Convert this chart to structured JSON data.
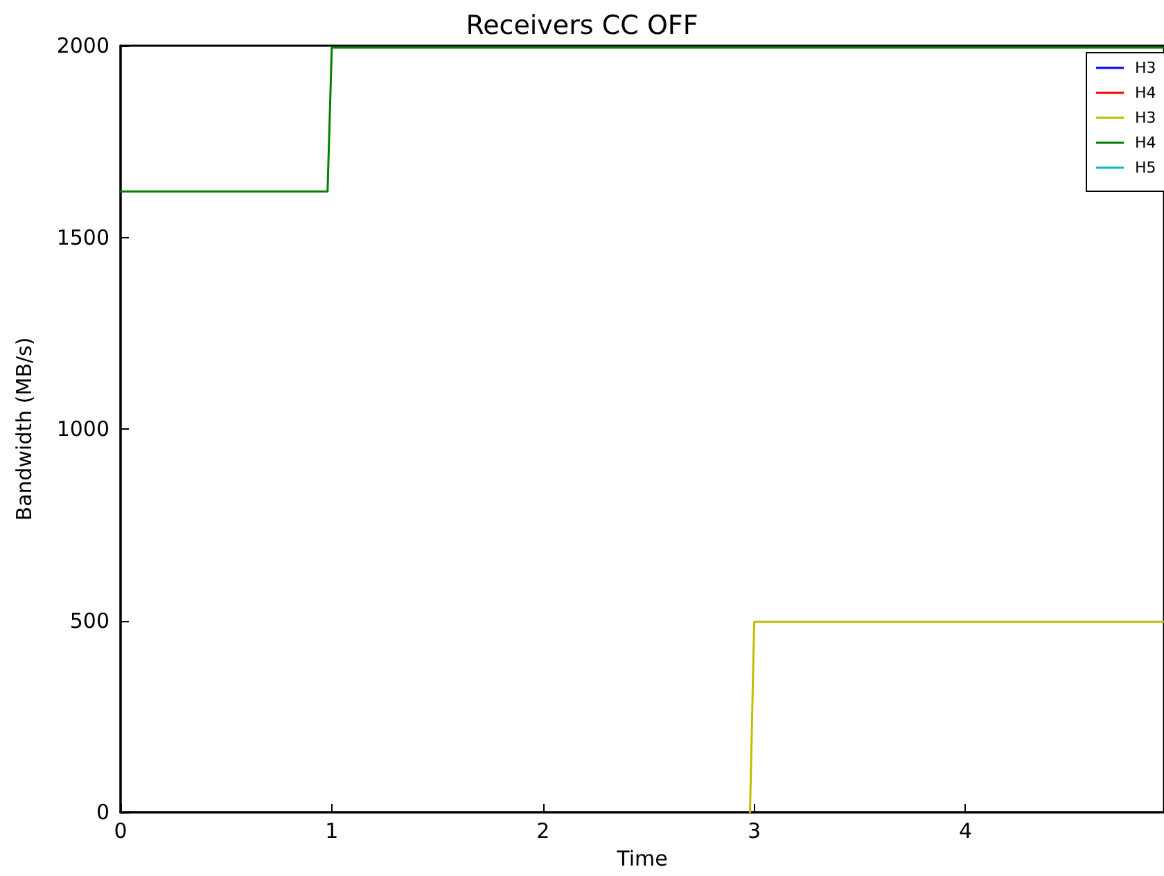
{
  "chart_data": {
    "type": "line",
    "title": "Receivers CC OFF",
    "xlabel": "Time",
    "ylabel": "Bandwidth (MB/s)",
    "xlim": [
      0,
      4.94
    ],
    "xticks": [
      0,
      1,
      2,
      3,
      4
    ],
    "ylim": [
      0,
      2000
    ],
    "yticks": [
      0,
      500,
      1000,
      1500,
      2000
    ],
    "grid": false,
    "legend": "top right",
    "marker": "none",
    "line_style": "solid",
    "series": [
      {
        "name": "H3",
        "color": "#0000ff"
      },
      {
        "name": "H4",
        "color": "#ff0000"
      },
      {
        "name": "H3",
        "color": "#bfbf00",
        "x": [
          2.98,
          3.0,
          4.94
        ],
        "values": [
          0,
          497,
          497
        ]
      },
      {
        "name": "H4",
        "color": "#008000",
        "x": [
          0,
          0.98,
          1.0,
          4.94
        ],
        "values": [
          1620,
          1620,
          1995,
          1995
        ]
      },
      {
        "name": "H5",
        "color": "#00bfbf"
      }
    ]
  }
}
